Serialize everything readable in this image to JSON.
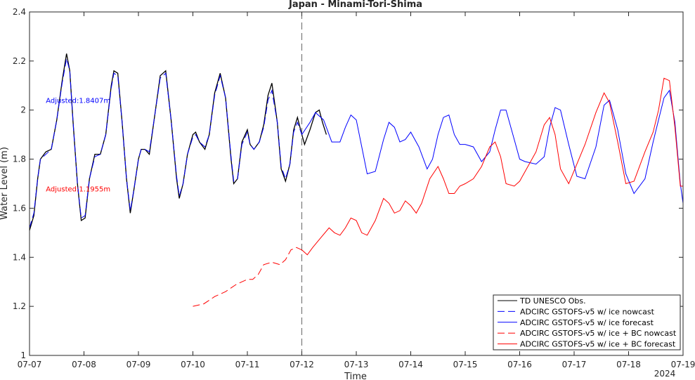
{
  "chart_data": {
    "type": "line",
    "title": "Japan - Minami-Tori-Shima",
    "xlabel": "Time",
    "ylabel": "Water Level (m)",
    "year_label": "2024",
    "x_ticks": [
      "07-07",
      "07-08",
      "07-09",
      "07-10",
      "07-11",
      "07-12",
      "07-13",
      "07-14",
      "07-15",
      "07-16",
      "07-17",
      "07-18",
      "07-19"
    ],
    "xlim": [
      0,
      12
    ],
    "ylim": [
      1,
      2.4
    ],
    "y_ticks": [
      "1",
      "1.2",
      "1.4",
      "1.6",
      "1.8",
      "2",
      "2.2",
      "2.4"
    ],
    "nowcast_divider_x": 5,
    "annotations": [
      {
        "text": "Adjusted:1.8407m",
        "x": 0.3,
        "y": 2.04,
        "color": "#0000ff"
      },
      {
        "text": "Adjusted:1.1955m",
        "x": 0.3,
        "y": 1.68,
        "color": "#ff0000"
      }
    ],
    "series": [
      {
        "name": "TD UNESCO Obs.",
        "color": "#000000",
        "style": "solid",
        "x": [
          0,
          0.08,
          0.15,
          0.2,
          0.3,
          0.4,
          0.5,
          0.6,
          0.68,
          0.74,
          0.8,
          0.88,
          0.95,
          1.02,
          1.1,
          1.2,
          1.3,
          1.4,
          1.5,
          1.55,
          1.62,
          1.7,
          1.78,
          1.85,
          1.92,
          2.0,
          2.05,
          2.12,
          2.2,
          2.3,
          2.4,
          2.5,
          2.6,
          2.7,
          2.75,
          2.82,
          2.9,
          3.0,
          3.05,
          3.12,
          3.22,
          3.3,
          3.4,
          3.5,
          3.6,
          3.7,
          3.75,
          3.82,
          3.9,
          4.0,
          4.05,
          4.12,
          4.22,
          4.3,
          4.38,
          4.45,
          4.55,
          4.62,
          4.7,
          4.78,
          4.85,
          4.92,
          5.0,
          5.05,
          5.15,
          5.25,
          5.32,
          5.38,
          5.45
        ],
        "y": [
          1.51,
          1.57,
          1.72,
          1.8,
          1.83,
          1.84,
          1.96,
          2.12,
          2.23,
          2.16,
          1.95,
          1.7,
          1.55,
          1.56,
          1.72,
          1.82,
          1.82,
          1.9,
          2.1,
          2.16,
          2.15,
          1.95,
          1.72,
          1.58,
          1.68,
          1.8,
          1.84,
          1.84,
          1.82,
          1.98,
          2.14,
          2.16,
          1.96,
          1.72,
          1.64,
          1.7,
          1.82,
          1.9,
          1.91,
          1.87,
          1.84,
          1.9,
          2.07,
          2.15,
          2.05,
          1.8,
          1.7,
          1.72,
          1.87,
          1.92,
          1.86,
          1.84,
          1.87,
          1.94,
          2.06,
          2.11,
          1.95,
          1.76,
          1.71,
          1.78,
          1.92,
          1.97,
          1.9,
          1.86,
          1.92,
          1.99,
          2.0,
          1.95,
          1.9
        ]
      },
      {
        "name": "ADCIRC GSTOFS-v5 w/ ice nowcast",
        "color": "#0000ff",
        "style": "dashed",
        "x": [
          0,
          0.08,
          0.15,
          0.2,
          0.3,
          0.4,
          0.5,
          0.6,
          0.68,
          0.74,
          0.8,
          0.88,
          0.95,
          1.02,
          1.1,
          1.2,
          1.3,
          1.4,
          1.5,
          1.55,
          1.62,
          1.7,
          1.78,
          1.85,
          1.92,
          2.0,
          2.05,
          2.12,
          2.2,
          2.3,
          2.4,
          2.5,
          2.6,
          2.7,
          2.75,
          2.82,
          2.9,
          3.0,
          3.05,
          3.12,
          3.22,
          3.3,
          3.4,
          3.5,
          3.6,
          3.7,
          3.75,
          3.82,
          3.9,
          4.0,
          4.05,
          4.12,
          4.22,
          4.3,
          4.38,
          4.45,
          4.55,
          4.62,
          4.7,
          4.78,
          4.85,
          4.92,
          5.0
        ],
        "y": [
          1.52,
          1.58,
          1.72,
          1.8,
          1.82,
          1.84,
          1.96,
          2.11,
          2.21,
          2.16,
          1.95,
          1.7,
          1.56,
          1.57,
          1.72,
          1.81,
          1.82,
          1.9,
          2.09,
          2.15,
          2.14,
          1.95,
          1.72,
          1.59,
          1.68,
          1.8,
          1.84,
          1.84,
          1.83,
          1.98,
          2.13,
          2.15,
          1.96,
          1.73,
          1.65,
          1.7,
          1.82,
          1.89,
          1.9,
          1.87,
          1.85,
          1.9,
          2.06,
          2.14,
          2.05,
          1.81,
          1.71,
          1.72,
          1.86,
          1.91,
          1.86,
          1.84,
          1.87,
          1.93,
          2.04,
          2.08,
          1.95,
          1.77,
          1.72,
          1.78,
          1.91,
          1.95,
          1.9
        ]
      },
      {
        "name": "ADCIRC GSTOFS-v5 w/ ice forecast",
        "color": "#0000ff",
        "style": "solid",
        "x": [
          5.0,
          5.15,
          5.25,
          5.4,
          5.55,
          5.7,
          5.8,
          5.9,
          6.0,
          6.1,
          6.2,
          6.35,
          6.5,
          6.6,
          6.7,
          6.8,
          6.9,
          7.0,
          7.15,
          7.3,
          7.4,
          7.5,
          7.6,
          7.7,
          7.8,
          7.9,
          8.0,
          8.15,
          8.3,
          8.45,
          8.55,
          8.65,
          8.75,
          8.9,
          9.0,
          9.1,
          9.3,
          9.45,
          9.55,
          9.65,
          9.75,
          9.9,
          10.05,
          10.2,
          10.4,
          10.55,
          10.65,
          10.8,
          10.95,
          11.1,
          11.3,
          11.45,
          11.55,
          11.65,
          11.75,
          11.85,
          11.95,
          12.0
        ],
        "y": [
          1.9,
          1.95,
          1.99,
          1.96,
          1.87,
          1.87,
          1.93,
          1.98,
          1.96,
          1.85,
          1.74,
          1.75,
          1.88,
          1.95,
          1.93,
          1.87,
          1.88,
          1.91,
          1.85,
          1.76,
          1.8,
          1.9,
          1.97,
          1.98,
          1.9,
          1.86,
          1.86,
          1.85,
          1.79,
          1.83,
          1.92,
          2.0,
          2.0,
          1.88,
          1.8,
          1.79,
          1.78,
          1.81,
          1.93,
          2.01,
          2.0,
          1.86,
          1.73,
          1.72,
          1.85,
          2.02,
          2.04,
          1.92,
          1.74,
          1.66,
          1.72,
          1.87,
          1.96,
          2.05,
          2.08,
          1.95,
          1.7,
          1.62
        ]
      },
      {
        "name": "ADCIRC GSTOFS-v5 w/ ice + BC nowcast",
        "color": "#ff0000",
        "style": "dashed",
        "x": [
          3.0,
          3.2,
          3.4,
          3.6,
          3.8,
          3.9,
          4.0,
          4.1,
          4.2,
          4.3,
          4.45,
          4.6,
          4.7,
          4.8,
          4.9,
          5.0
        ],
        "y": [
          1.2,
          1.21,
          1.24,
          1.26,
          1.29,
          1.3,
          1.31,
          1.31,
          1.33,
          1.37,
          1.38,
          1.37,
          1.39,
          1.43,
          1.44,
          1.43
        ]
      },
      {
        "name": "ADCIRC GSTOFS-v5 w/ ice + BC forecast",
        "color": "#ff0000",
        "style": "solid",
        "x": [
          5.0,
          5.1,
          5.2,
          5.35,
          5.5,
          5.6,
          5.7,
          5.8,
          5.9,
          6.0,
          6.1,
          6.2,
          6.35,
          6.5,
          6.6,
          6.7,
          6.8,
          6.9,
          7.0,
          7.1,
          7.2,
          7.35,
          7.5,
          7.6,
          7.7,
          7.8,
          7.9,
          8.0,
          8.15,
          8.3,
          8.45,
          8.55,
          8.65,
          8.75,
          8.9,
          9.0,
          9.1,
          9.3,
          9.45,
          9.55,
          9.65,
          9.75,
          9.9,
          10.05,
          10.2,
          10.4,
          10.55,
          10.65,
          10.8,
          10.95,
          11.1,
          11.3,
          11.45,
          11.55,
          11.65,
          11.75,
          11.85,
          11.95,
          12.0
        ],
        "y": [
          1.43,
          1.41,
          1.44,
          1.48,
          1.52,
          1.5,
          1.49,
          1.52,
          1.56,
          1.55,
          1.5,
          1.49,
          1.55,
          1.64,
          1.62,
          1.58,
          1.59,
          1.63,
          1.61,
          1.58,
          1.62,
          1.72,
          1.77,
          1.72,
          1.66,
          1.66,
          1.69,
          1.7,
          1.72,
          1.77,
          1.85,
          1.87,
          1.81,
          1.7,
          1.69,
          1.71,
          1.75,
          1.83,
          1.94,
          1.97,
          1.9,
          1.76,
          1.7,
          1.78,
          1.86,
          1.99,
          2.07,
          2.03,
          1.87,
          1.7,
          1.71,
          1.83,
          1.91,
          2.0,
          2.13,
          2.12,
          1.93,
          1.69,
          1.69
        ]
      }
    ]
  }
}
